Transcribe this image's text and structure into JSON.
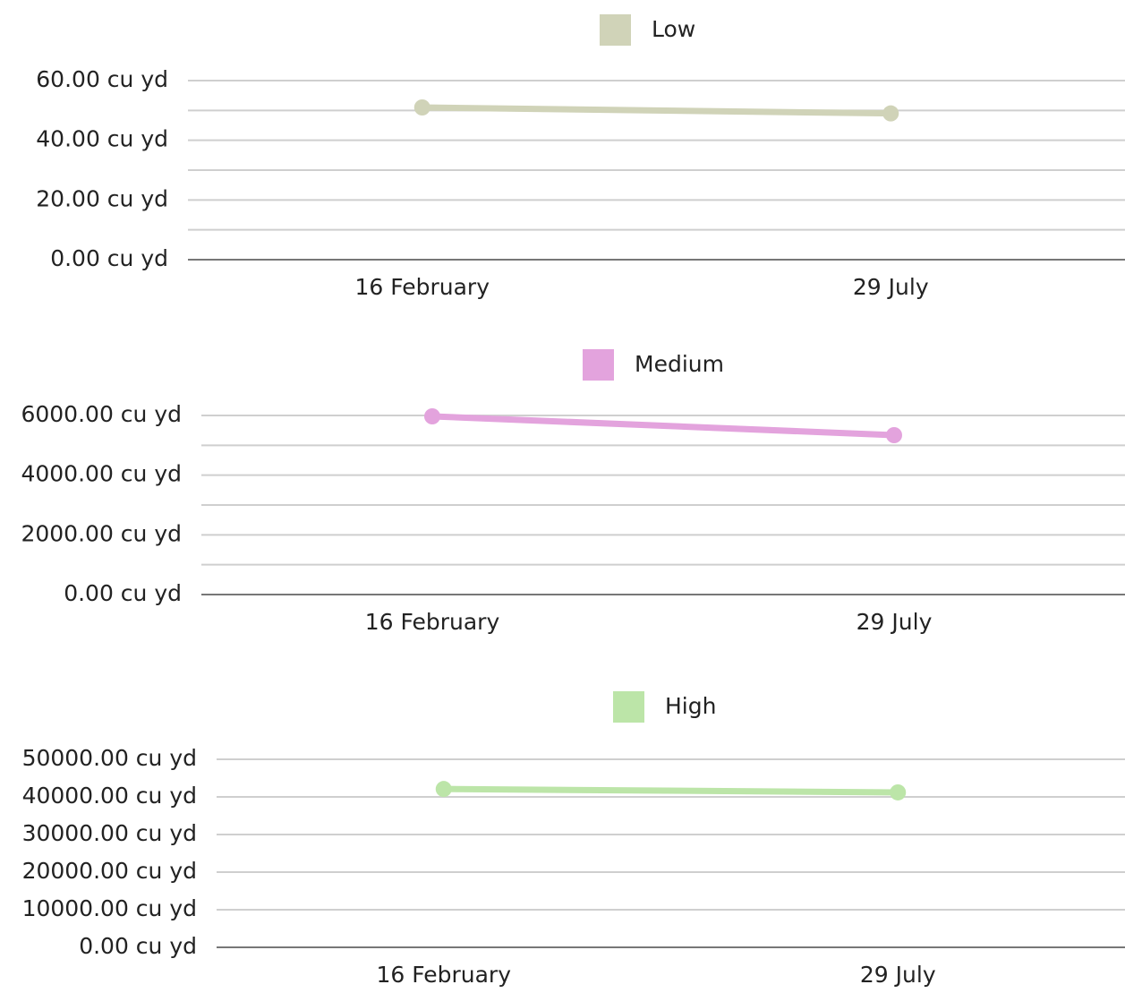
{
  "chart_data": [
    {
      "type": "line",
      "categories": [
        "16 February",
        "29 July"
      ],
      "series": [
        {
          "name": "Low",
          "color": "#d0d3b8",
          "values": [
            51,
            49
          ]
        }
      ],
      "ylim": [
        0,
        60
      ],
      "yticks": [
        {
          "value": 0,
          "label": "0.00 cu yd"
        },
        {
          "value": 20,
          "label": "20.00 cu yd"
        },
        {
          "value": 40,
          "label": "40.00 cu yd"
        },
        {
          "value": 60,
          "label": "60.00 cu yd"
        }
      ],
      "minor_yticks": [
        10,
        30,
        50
      ],
      "grid": true
    },
    {
      "type": "line",
      "categories": [
        "16 February",
        "29 July"
      ],
      "series": [
        {
          "name": "Medium",
          "color": "#e3a3dd",
          "values": [
            5970,
            5340
          ]
        }
      ],
      "ylim": [
        0,
        6000
      ],
      "yticks": [
        {
          "value": 0,
          "label": "0.00 cu yd"
        },
        {
          "value": 2000,
          "label": "2000.00 cu yd"
        },
        {
          "value": 4000,
          "label": "4000.00 cu yd"
        },
        {
          "value": 6000,
          "label": "6000.00 cu yd"
        }
      ],
      "minor_yticks": [
        1000,
        3000,
        5000
      ],
      "grid": true
    },
    {
      "type": "line",
      "categories": [
        "16 February",
        "29 July"
      ],
      "series": [
        {
          "name": "High",
          "color": "#bce5a8",
          "values": [
            42100,
            41200
          ]
        }
      ],
      "ylim": [
        0,
        50000
      ],
      "yticks": [
        {
          "value": 0,
          "label": "0.00 cu yd"
        },
        {
          "value": 10000,
          "label": "10000.00 cu yd"
        },
        {
          "value": 20000,
          "label": "20000.00 cu yd"
        },
        {
          "value": 30000,
          "label": "30000.00 cu yd"
        },
        {
          "value": 40000,
          "label": "40000.00 cu yd"
        },
        {
          "value": 50000,
          "label": "50000.00 cu yd"
        }
      ],
      "minor_yticks": [],
      "grid": true
    }
  ]
}
